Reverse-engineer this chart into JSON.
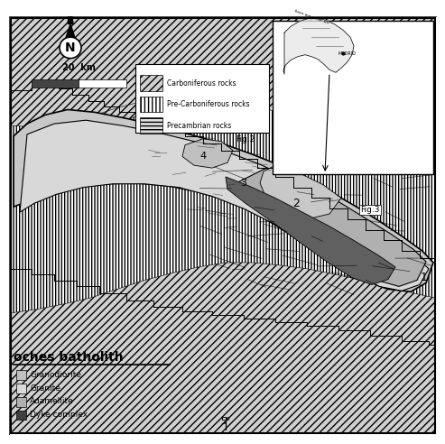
{
  "title": "oches batholith",
  "background_color": "#ffffff",
  "legend_items": [
    {
      "label": "Carboniferous rocks",
      "hatch": "////",
      "facecolor": "#d0d0d0"
    },
    {
      "label": "Pre-Carboniferous rocks",
      "hatch": "||||",
      "facecolor": "#ffffff"
    },
    {
      "label": "Precambrian rocks",
      "hatch": "----",
      "facecolor": "#e0e0e0"
    }
  ],
  "bottom_legend": [
    "Granodiorite",
    "Granite",
    "Adamellite",
    "Dyke complex"
  ],
  "scale_bar_label": "20  km",
  "fig2_label": "Fig.2",
  "fig3_label": "Fig.3",
  "longitude_label": "5°",
  "numbers": [
    "1",
    "2",
    "3",
    "4"
  ]
}
